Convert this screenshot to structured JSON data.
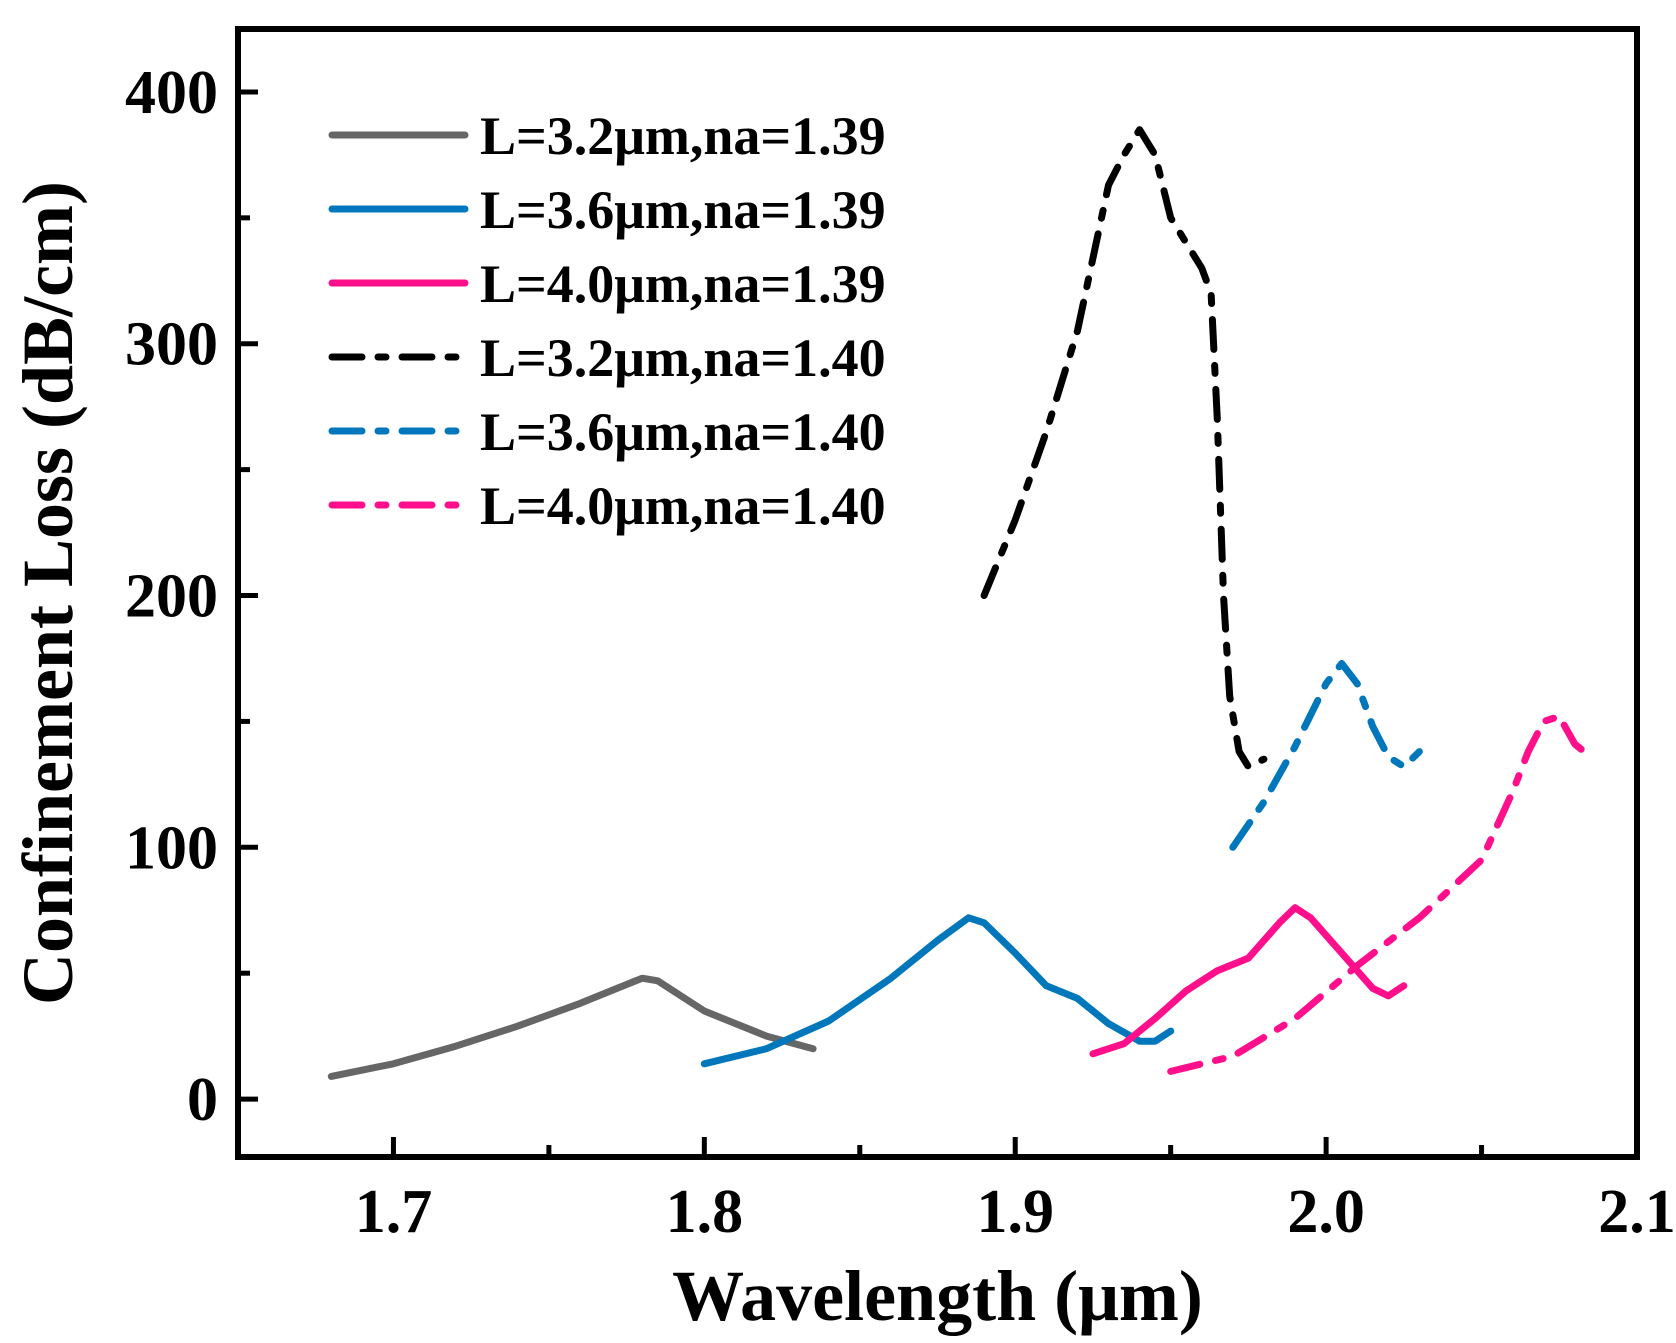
{
  "chart_data": {
    "type": "line",
    "title": "",
    "xlabel": "Wavelength (μm)",
    "ylabel": "Confinement Loss (dB/cm)",
    "xlim": [
      1.65,
      2.1
    ],
    "ylim": [
      -23,
      425
    ],
    "xticks": [
      1.7,
      1.8,
      1.9,
      2.0,
      2.1
    ],
    "xtick_labels": [
      "1.7",
      "1.8",
      "1.9",
      "2.0",
      "2.1"
    ],
    "xminor": [
      1.75,
      1.85,
      1.95,
      2.05
    ],
    "yticks": [
      0,
      100,
      200,
      300,
      400
    ],
    "ytick_labels": [
      "0",
      "100",
      "200",
      "300",
      "400"
    ],
    "yminor": [
      50,
      150,
      250,
      350
    ],
    "grid": false,
    "legend_position": "top-left",
    "series": [
      {
        "name": "L=3.2μm,na=1.39",
        "color": "#666666",
        "style": "solid",
        "points": [
          [
            1.68,
            9
          ],
          [
            1.7,
            14
          ],
          [
            1.72,
            21
          ],
          [
            1.74,
            29
          ],
          [
            1.76,
            38
          ],
          [
            1.77,
            43
          ],
          [
            1.78,
            48
          ],
          [
            1.785,
            47
          ],
          [
            1.8,
            35
          ],
          [
            1.82,
            25
          ],
          [
            1.835,
            20
          ]
        ]
      },
      {
        "name": "L=3.6μm,na=1.39",
        "color": "#0077BB",
        "style": "solid",
        "points": [
          [
            1.8,
            14
          ],
          [
            1.82,
            20
          ],
          [
            1.84,
            31
          ],
          [
            1.86,
            48
          ],
          [
            1.875,
            63
          ],
          [
            1.885,
            72
          ],
          [
            1.89,
            70
          ],
          [
            1.9,
            58
          ],
          [
            1.91,
            45
          ],
          [
            1.92,
            40
          ],
          [
            1.93,
            30
          ],
          [
            1.94,
            23
          ],
          [
            1.945,
            23
          ],
          [
            1.95,
            27
          ]
        ]
      },
      {
        "name": "L=4.0μm,na=1.39",
        "color": "#FF0F8C",
        "style": "solid",
        "points": [
          [
            1.925,
            18
          ],
          [
            1.935,
            22
          ],
          [
            1.945,
            32
          ],
          [
            1.955,
            43
          ],
          [
            1.965,
            51
          ],
          [
            1.975,
            56
          ],
          [
            1.985,
            70
          ],
          [
            1.99,
            76
          ],
          [
            1.995,
            72
          ],
          [
            2.005,
            58
          ],
          [
            2.015,
            44
          ],
          [
            2.02,
            41
          ],
          [
            2.025,
            45
          ]
        ]
      },
      {
        "name": "L=3.2μm,na=1.40",
        "color": "#000000",
        "style": "dashdot",
        "points": [
          [
            1.89,
            200
          ],
          [
            1.9,
            230
          ],
          [
            1.91,
            265
          ],
          [
            1.92,
            305
          ],
          [
            1.93,
            363
          ],
          [
            1.935,
            375
          ],
          [
            1.94,
            385
          ],
          [
            1.945,
            375
          ],
          [
            1.95,
            350
          ],
          [
            1.96,
            330
          ],
          [
            1.963,
            320
          ],
          [
            1.965,
            270
          ],
          [
            1.967,
            200
          ],
          [
            1.969,
            160
          ],
          [
            1.972,
            138
          ],
          [
            1.975,
            132
          ],
          [
            1.98,
            135
          ]
        ]
      },
      {
        "name": "L=3.6μm,na=1.40",
        "color": "#0077BB",
        "style": "dashdot",
        "points": [
          [
            1.97,
            100
          ],
          [
            1.98,
            118
          ],
          [
            1.99,
            140
          ],
          [
            2.0,
            165
          ],
          [
            2.005,
            173
          ],
          [
            2.01,
            165
          ],
          [
            2.015,
            148
          ],
          [
            2.02,
            136
          ],
          [
            2.025,
            132
          ],
          [
            2.03,
            138
          ]
        ]
      },
      {
        "name": "L=4.0μm,na=1.40",
        "color": "#FF0F8C",
        "style": "dashdot",
        "points": [
          [
            1.95,
            11
          ],
          [
            1.97,
            17
          ],
          [
            1.99,
            32
          ],
          [
            2.01,
            53
          ],
          [
            2.03,
            72
          ],
          [
            2.05,
            95
          ],
          [
            2.06,
            122
          ],
          [
            2.065,
            138
          ],
          [
            2.07,
            150
          ],
          [
            2.075,
            152
          ],
          [
            2.08,
            141
          ],
          [
            2.085,
            136
          ]
        ]
      }
    ]
  }
}
